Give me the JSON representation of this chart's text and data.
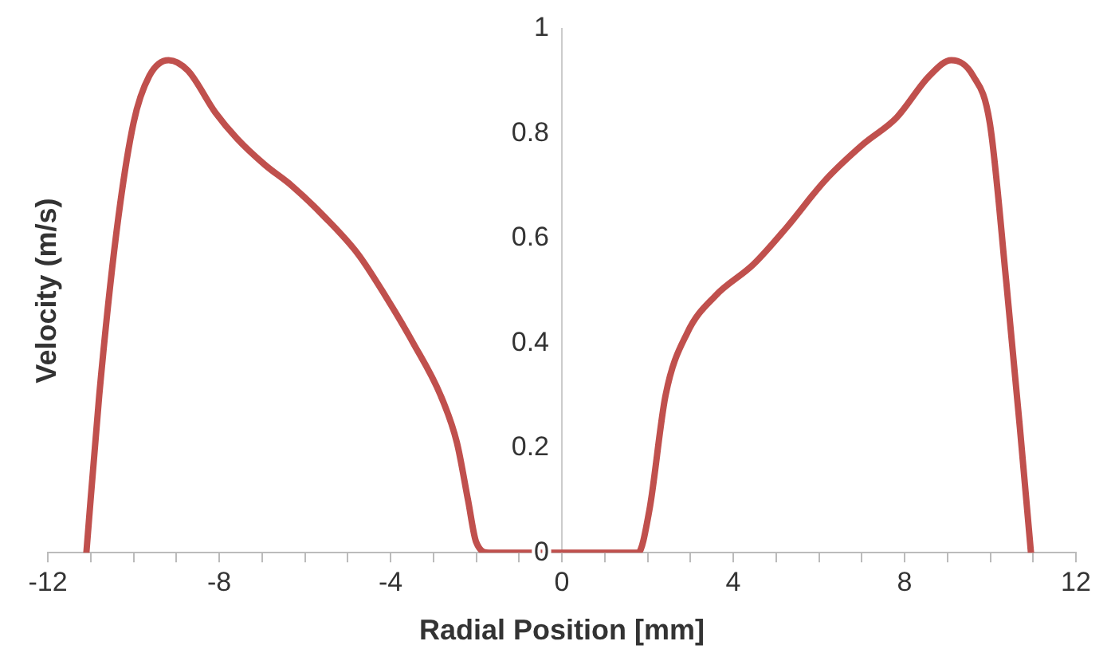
{
  "chart_data": {
    "type": "line",
    "xlabel": "Radial Position [mm]",
    "ylabel": "Velocity (m/s)",
    "xlim": [
      -12,
      12
    ],
    "xticks": [
      -12,
      {
        "value": -11,
        "label": null
      },
      {
        "value": -10,
        "label": null
      },
      {
        "value": -9,
        "label": null
      },
      -8,
      {
        "value": -7,
        "label": null
      },
      {
        "value": -6,
        "label": null
      },
      {
        "value": -5,
        "label": null
      },
      -4,
      {
        "value": -3,
        "label": null
      },
      {
        "value": -2,
        "label": null
      },
      {
        "value": -1,
        "label": null
      },
      0,
      {
        "value": 1,
        "label": null
      },
      {
        "value": 2,
        "label": null
      },
      {
        "value": 3,
        "label": null
      },
      4,
      {
        "value": 5,
        "label": null
      },
      {
        "value": 6,
        "label": null
      },
      {
        "value": 7,
        "label": null
      },
      8,
      {
        "value": 9,
        "label": null
      },
      {
        "value": 10,
        "label": null
      },
      {
        "value": 11,
        "label": null
      },
      12
    ],
    "ylim": [
      0,
      1
    ],
    "yticks": [
      0,
      0.2,
      0.4,
      0.6,
      0.8,
      1
    ],
    "grid": false,
    "legend": false,
    "marker": "none",
    "line_style": "solid",
    "series": [
      {
        "color": "#c0504d",
        "x": [
          -11.1,
          -10.8,
          -10.4,
          -10.0,
          -9.63,
          -9.18,
          -8.73,
          -8.09,
          -7.58,
          -6.93,
          -6.3,
          -5.53,
          -4.76,
          -4.12,
          -3.47,
          -2.83,
          -2.45,
          -2.19,
          -2.0,
          -1.7,
          0,
          1.78,
          2.04,
          2.42,
          2.93,
          3.58,
          4.47,
          5.24,
          6.14,
          7.04,
          7.81,
          8.58,
          9.09,
          9.6,
          9.99,
          10.37,
          10.69,
          10.95
        ],
        "values": [
          0,
          0.3,
          0.61,
          0.82,
          0.91,
          0.94,
          0.92,
          0.84,
          0.79,
          0.74,
          0.7,
          0.64,
          0.57,
          0.49,
          0.4,
          0.3,
          0.21,
          0.1,
          0.02,
          0,
          0,
          0,
          0.08,
          0.3,
          0.42,
          0.49,
          0.55,
          0.62,
          0.71,
          0.78,
          0.83,
          0.91,
          0.94,
          0.91,
          0.82,
          0.52,
          0.24,
          0
        ]
      }
    ]
  }
}
